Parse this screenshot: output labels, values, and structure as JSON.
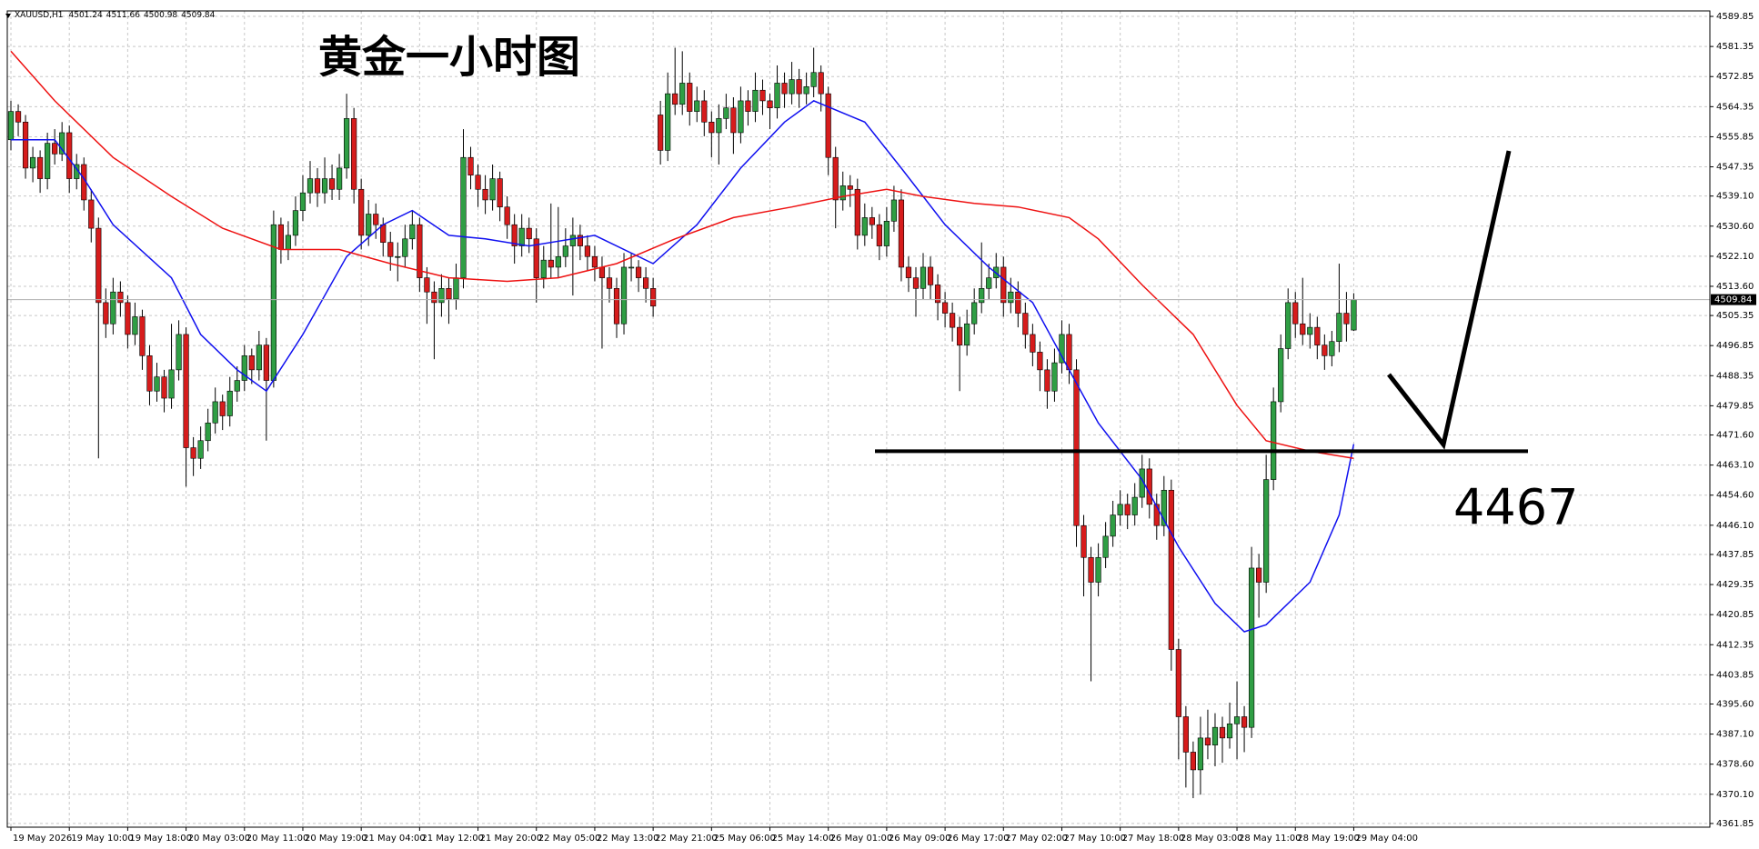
{
  "chart_data": {
    "type": "candlestick",
    "symbol": "XAUUSD,H1",
    "title": "黄金一小时图",
    "level": 4467,
    "bull_color": "#2f9e44",
    "bear_color": "#d61c1c",
    "grid": true,
    "xlim": [
      -0.5,
      232.8
    ],
    "ylim": [
      4360.8,
      4591.4
    ],
    "yticks": [
      4589.85,
      4581.35,
      4572.85,
      4564.35,
      4555.85,
      4547.35,
      {
        "value": 4539.1,
        "label": "4539.10"
      },
      {
        "value": 4530.6,
        "label": "4530.60"
      },
      {
        "value": 4522.1,
        "label": "4522.10"
      },
      {
        "value": 4513.6,
        "label": "4513.60"
      },
      4505.35,
      4496.85,
      4488.35,
      4479.85,
      {
        "value": 4471.6,
        "label": "4471.60"
      },
      {
        "value": 4463.1,
        "label": "4463.10"
      },
      {
        "value": 4454.6,
        "label": "4454.60"
      },
      {
        "value": 4446.1,
        "label": "4446.10"
      },
      4437.85,
      4429.35,
      4420.85,
      4412.35,
      4403.85,
      {
        "value": 4395.6,
        "label": "4395.60"
      },
      {
        "value": 4387.1,
        "label": "4387.10"
      },
      {
        "value": 4378.6,
        "label": "4378.60"
      },
      {
        "value": 4370.1,
        "label": "4370.10"
      },
      4361.85
    ],
    "xticks": [
      {
        "value": 0,
        "label": "19 May 2026"
      },
      {
        "value": 8,
        "label": "19 May 10:00"
      },
      {
        "value": 16,
        "label": "19 May 18:00"
      },
      {
        "value": 24,
        "label": "20 May 03:00"
      },
      {
        "value": 32,
        "label": "20 May 11:00"
      },
      {
        "value": 40,
        "label": "20 May 19:00"
      },
      {
        "value": 48,
        "label": "21 May 04:00"
      },
      {
        "value": 56,
        "label": "21 May 12:00"
      },
      {
        "value": 64,
        "label": "21 May 20:00"
      },
      {
        "value": 72,
        "label": "22 May 05:00"
      },
      {
        "value": 80,
        "label": "22 May 13:00"
      },
      {
        "value": 88,
        "label": "22 May 21:00"
      },
      {
        "value": 96,
        "label": "25 May 06:00"
      },
      {
        "value": 104,
        "label": "25 May 14:00"
      },
      {
        "value": 112,
        "label": "26 May 01:00"
      },
      {
        "value": 120,
        "label": "26 May 09:00"
      },
      {
        "value": 128,
        "label": "26 May 17:00"
      },
      {
        "value": 136,
        "label": "27 May 02:00"
      },
      {
        "value": 144,
        "label": "27 May 10:00"
      },
      {
        "value": 152,
        "label": "27 May 18:00"
      },
      {
        "value": 160,
        "label": "28 May 03:00"
      },
      {
        "value": 168,
        "label": "28 May 11:00"
      },
      {
        "value": 176,
        "label": "28 May 19:00"
      },
      {
        "value": 184,
        "label": "29 May 04:00"
      }
    ],
    "ohlc": [
      [
        4555,
        4566,
        4552,
        4563
      ],
      [
        4563,
        4565,
        4556,
        4560
      ],
      [
        4560,
        4562,
        4544,
        4547
      ],
      [
        4547,
        4553,
        4543,
        4550
      ],
      [
        4550,
        4552,
        4540,
        4544
      ],
      [
        4544,
        4557,
        4541,
        4554
      ],
      [
        4554,
        4558,
        4548,
        4551
      ],
      [
        4551,
        4560,
        4549,
        4557
      ],
      [
        4557,
        4559,
        4540,
        4544
      ],
      [
        4544,
        4551,
        4541,
        4548
      ],
      [
        4548,
        4550,
        4535,
        4538
      ],
      [
        4538,
        4541,
        4526,
        4530
      ],
      [
        4530,
        4533,
        4465,
        4509
      ],
      [
        4509,
        4513,
        4499,
        4503
      ],
      [
        4503,
        4516,
        4500,
        4512
      ],
      [
        4512,
        4515,
        4505,
        4509
      ],
      [
        4509,
        4511,
        4496,
        4500
      ],
      [
        4500,
        4509,
        4497,
        4505
      ],
      [
        4505,
        4507,
        4490,
        4494
      ],
      [
        4494,
        4497,
        4480,
        4484
      ],
      [
        4484,
        4492,
        4481,
        4488
      ],
      [
        4488,
        4490,
        4478,
        4482
      ],
      [
        4482,
        4503,
        4479,
        4490
      ],
      [
        4490,
        4504,
        4487,
        4500
      ],
      [
        4500,
        4502,
        4457,
        4468
      ],
      [
        4468,
        4471,
        4460,
        4465
      ],
      [
        4465,
        4474,
        4462,
        4470
      ],
      [
        4470,
        4479,
        4467,
        4475
      ],
      [
        4475,
        4485,
        4472,
        4481
      ],
      [
        4481,
        4483,
        4473,
        4477
      ],
      [
        4477,
        4488,
        4474,
        4484
      ],
      [
        4484,
        4491,
        4481,
        4487
      ],
      [
        4487,
        4497,
        4484,
        4494
      ],
      [
        4494,
        4496,
        4486,
        4490
      ],
      [
        4490,
        4501,
        4487,
        4497
      ],
      [
        4497,
        4499,
        4470,
        4487
      ],
      [
        4487,
        4535,
        4485,
        4531
      ],
      [
        4531,
        4533,
        4520,
        4524
      ],
      [
        4524,
        4532,
        4521,
        4528
      ],
      [
        4528,
        4539,
        4525,
        4535
      ],
      [
        4535,
        4545,
        4532,
        4540
      ],
      [
        4540,
        4549,
        4537,
        4544
      ],
      [
        4544,
        4547,
        4536,
        4540
      ],
      [
        4540,
        4550,
        4537,
        4544
      ],
      [
        4544,
        4548,
        4538,
        4541
      ],
      [
        4541,
        4551,
        4538,
        4547
      ],
      [
        4547,
        4568,
        4544,
        4561
      ],
      [
        4561,
        4564,
        4537,
        4541
      ],
      [
        4541,
        4544,
        4524,
        4528
      ],
      [
        4528,
        4538,
        4525,
        4534
      ],
      [
        4534,
        4537,
        4527,
        4531
      ],
      [
        4531,
        4533,
        4522,
        4526
      ],
      [
        4526,
        4529,
        4518,
        4522
      ],
      [
        4522,
        4526,
        4515,
        4522
      ],
      [
        4522,
        4531,
        4519,
        4527
      ],
      [
        4527,
        4535,
        4524,
        4531
      ],
      [
        4531,
        4533,
        4512,
        4516
      ],
      [
        4516,
        4519,
        4503,
        4512
      ],
      [
        4512,
        4515,
        4493,
        4509
      ],
      [
        4509,
        4517,
        4505,
        4513
      ],
      [
        4513,
        4516,
        4503,
        4510
      ],
      [
        4510,
        4520,
        4507,
        4516
      ],
      [
        4516,
        4558,
        4513,
        4550
      ],
      [
        4550,
        4553,
        4541,
        4545
      ],
      [
        4545,
        4548,
        4536,
        4541
      ],
      [
        4541,
        4545,
        4534,
        4538
      ],
      [
        4538,
        4548,
        4535,
        4544
      ],
      [
        4544,
        4546,
        4532,
        4536
      ],
      [
        4536,
        4539,
        4527,
        4531
      ],
      [
        4531,
        4534,
        4520,
        4525
      ],
      [
        4525,
        4534,
        4522,
        4530
      ],
      [
        4530,
        4533,
        4523,
        4527
      ],
      [
        4527,
        4530,
        4509,
        4516
      ],
      [
        4516,
        4525,
        4513,
        4521
      ],
      [
        4521,
        4537,
        4516,
        4519
      ],
      [
        4519,
        4536,
        4516,
        4522
      ],
      [
        4522,
        4530,
        4519,
        4525
      ],
      [
        4525,
        4533,
        4511,
        4528
      ],
      [
        4528,
        4531,
        4521,
        4525
      ],
      [
        4525,
        4528,
        4518,
        4522
      ],
      [
        4522,
        4525,
        4515,
        4519
      ],
      [
        4519,
        4522,
        4496,
        4516
      ],
      [
        4516,
        4519,
        4509,
        4513
      ],
      [
        4513,
        4516,
        4499,
        4503
      ],
      [
        4503,
        4523,
        4500,
        4519
      ],
      [
        4519,
        4523,
        4515,
        4519
      ],
      [
        4519,
        4521,
        4512,
        4516
      ],
      [
        4516,
        4519,
        4509,
        4513
      ],
      [
        4513,
        4516,
        4505,
        4508
      ],
      [
        4562,
        4566,
        4548,
        4552
      ],
      [
        4552,
        4574,
        4549,
        4568
      ],
      [
        4568,
        4581,
        4562,
        4565
      ],
      [
        4565,
        4580,
        4562,
        4571
      ],
      [
        4571,
        4574,
        4559,
        4563
      ],
      [
        4563,
        4570,
        4560,
        4566
      ],
      [
        4566,
        4569,
        4556,
        4560
      ],
      [
        4560,
        4563,
        4550,
        4557
      ],
      [
        4557,
        4565,
        4548,
        4561
      ],
      [
        4561,
        4568,
        4558,
        4564
      ],
      [
        4564,
        4567,
        4551,
        4557
      ],
      [
        4557,
        4570,
        4554,
        4566
      ],
      [
        4566,
        4569,
        4559,
        4563
      ],
      [
        4563,
        4574,
        4560,
        4569
      ],
      [
        4569,
        4572,
        4562,
        4566
      ],
      [
        4566,
        4568,
        4558,
        4564
      ],
      [
        4564,
        4576,
        4561,
        4571
      ],
      [
        4571,
        4574,
        4564,
        4568
      ],
      [
        4568,
        4577,
        4565,
        4572
      ],
      [
        4572,
        4575,
        4564,
        4568
      ],
      [
        4568,
        4574,
        4565,
        4570
      ],
      [
        4570,
        4581,
        4567,
        4574
      ],
      [
        4574,
        4576,
        4563,
        4568
      ],
      [
        4568,
        4570,
        4545,
        4550
      ],
      [
        4550,
        4553,
        4530,
        4538
      ],
      [
        4538,
        4546,
        4535,
        4542
      ],
      [
        4542,
        4545,
        4536,
        4541
      ],
      [
        4541,
        4544,
        4524,
        4528
      ],
      [
        4528,
        4537,
        4525,
        4533
      ],
      [
        4533,
        4536,
        4527,
        4531
      ],
      [
        4531,
        4534,
        4521,
        4525
      ],
      [
        4525,
        4536,
        4522,
        4532
      ],
      [
        4532,
        4542,
        4529,
        4538
      ],
      [
        4538,
        4541,
        4515,
        4519
      ],
      [
        4519,
        4522,
        4512,
        4516
      ],
      [
        4516,
        4519,
        4505,
        4513
      ],
      [
        4513,
        4523,
        4510,
        4519
      ],
      [
        4519,
        4522,
        4510,
        4514
      ],
      [
        4514,
        4517,
        4504,
        4509
      ],
      [
        4509,
        4512,
        4502,
        4506
      ],
      [
        4506,
        4509,
        4498,
        4502
      ],
      [
        4502,
        4505,
        4484,
        4497
      ],
      [
        4497,
        4507,
        4494,
        4503
      ],
      [
        4503,
        4513,
        4500,
        4509
      ],
      [
        4509,
        4526,
        4506,
        4513
      ],
      [
        4513,
        4520,
        4510,
        4516
      ],
      [
        4516,
        4523,
        4513,
        4519
      ],
      [
        4519,
        4522,
        4505,
        4509
      ],
      [
        4509,
        4516,
        4506,
        4512
      ],
      [
        4512,
        4515,
        4502,
        4506
      ],
      [
        4506,
        4509,
        4496,
        4500
      ],
      [
        4500,
        4503,
        4491,
        4495
      ],
      [
        4495,
        4498,
        4484,
        4490
      ],
      [
        4490,
        4493,
        4479,
        4484
      ],
      [
        4484,
        4496,
        4481,
        4492
      ],
      [
        4492,
        4504,
        4489,
        4500
      ],
      [
        4500,
        4503,
        4486,
        4490
      ],
      [
        4490,
        4493,
        4440,
        4446
      ],
      [
        4446,
        4449,
        4426,
        4437
      ],
      [
        4437,
        4440,
        4402,
        4430
      ],
      [
        4430,
        4441,
        4426,
        4437
      ],
      [
        4437,
        4447,
        4434,
        4443
      ],
      [
        4443,
        4453,
        4440,
        4449
      ],
      [
        4449,
        4456,
        4446,
        4452
      ],
      [
        4452,
        4455,
        4445,
        4449
      ],
      [
        4449,
        4458,
        4446,
        4454
      ],
      [
        4454,
        4466,
        4451,
        4462
      ],
      [
        4462,
        4465,
        4448,
        4452
      ],
      [
        4452,
        4455,
        4442,
        4446
      ],
      [
        4446,
        4460,
        4443,
        4456
      ],
      [
        4456,
        4459,
        4405,
        4411
      ],
      [
        4411,
        4414,
        4380,
        4392
      ],
      [
        4392,
        4395,
        4372,
        4382
      ],
      [
        4382,
        4385,
        4369,
        4377
      ],
      [
        4377,
        4392,
        4370,
        4386
      ],
      [
        4386,
        4394,
        4380,
        4384
      ],
      [
        4384,
        4393,
        4378,
        4389
      ],
      [
        4389,
        4392,
        4379,
        4386
      ],
      [
        4386,
        4396,
        4383,
        4390
      ],
      [
        4390,
        4402,
        4380,
        4392
      ],
      [
        4392,
        4395,
        4382,
        4389
      ],
      [
        4389,
        4440,
        4386,
        4434
      ],
      [
        4434,
        4438,
        4420,
        4430
      ],
      [
        4430,
        4466,
        4427,
        4459
      ],
      [
        4459,
        4485,
        4456,
        4481
      ],
      [
        4481,
        4500,
        4478,
        4496
      ],
      [
        4496,
        4513,
        4493,
        4509
      ],
      [
        4509,
        4512,
        4499,
        4503
      ],
      [
        4503,
        4516,
        4497,
        4500
      ],
      [
        4500,
        4506,
        4496,
        4502
      ],
      [
        4502,
        4505,
        4493,
        4497
      ],
      [
        4497,
        4500,
        4490,
        4494
      ],
      [
        4494,
        4501,
        4491,
        4498
      ],
      [
        4498,
        4520,
        4495,
        4506
      ],
      [
        4506,
        4512,
        4498,
        4503
      ],
      [
        4501.24,
        4511.66,
        4500.98,
        4509.84
      ]
    ],
    "series": [
      {
        "color": "#1010f0",
        "x": [
          0,
          6,
          10,
          14,
          22,
          26,
          31,
          35,
          40,
          46,
          51,
          55,
          60,
          65,
          71,
          80,
          88,
          94,
          100,
          106,
          110,
          117,
          122,
          128,
          134,
          140,
          145,
          149,
          155,
          160,
          165,
          169,
          172,
          178,
          182,
          184
        ],
        "values": [
          4555,
          4555,
          4544,
          4531,
          4516,
          4500,
          4490,
          4484,
          4500,
          4522,
          4531,
          4535,
          4528,
          4527,
          4525,
          4528,
          4520,
          4531,
          4547,
          4560,
          4566,
          4560,
          4547,
          4531,
          4519,
          4509,
          4490,
          4475,
          4459,
          4440,
          4424,
          4416,
          4418,
          4430,
          4449,
          4469
        ]
      },
      {
        "color": "#ee1111",
        "x": [
          0,
          6,
          14,
          22,
          29,
          37,
          45,
          52,
          60,
          68,
          75,
          83,
          91,
          99,
          107,
          114,
          120,
          125,
          132,
          138,
          145,
          149,
          155,
          162,
          168,
          172,
          178,
          184
        ],
        "values": [
          4580,
          4566,
          4550,
          4539,
          4530,
          4524,
          4524,
          4520,
          4516,
          4515,
          4516,
          4520,
          4527,
          4533,
          4536,
          4539,
          4541,
          4539,
          4537,
          4536,
          4533,
          4527,
          4514,
          4500,
          4480,
          4470,
          4467,
          4465
        ]
      }
    ]
  }
}
